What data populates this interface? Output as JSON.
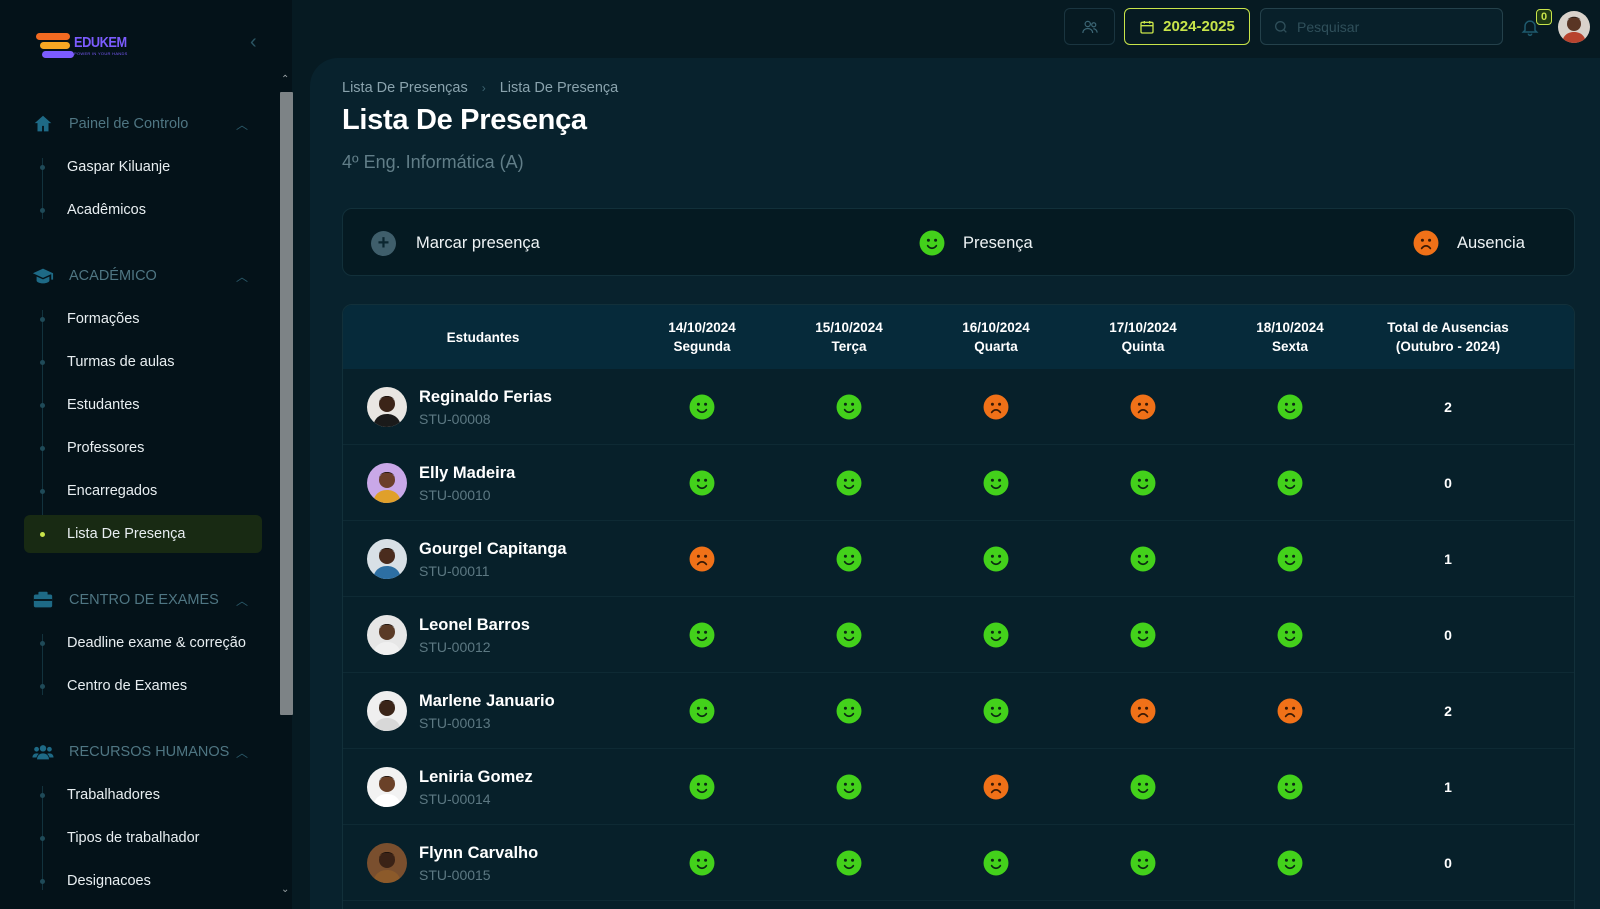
{
  "app": {
    "logo_title": "EDUKEM",
    "logo_subtitle": "POWER IN YOUR HANDS"
  },
  "colors": {
    "accent": "#c8e44a",
    "present": "#43d11b",
    "absent": "#f07118",
    "background": "#061a22"
  },
  "sidebar": {
    "sections": [
      {
        "label": "Painel de Controlo",
        "icon": "home-icon",
        "items": [
          "Gaspar Kiluanje",
          "Acadêmicos"
        ]
      },
      {
        "label": "ACADÉMICO",
        "icon": "graduation-cap-icon",
        "items": [
          "Formações",
          "Turmas de aulas",
          "Estudantes",
          "Professores",
          "Encarregados",
          "Lista De Presença"
        ]
      },
      {
        "label": "CENTRO DE EXAMES",
        "icon": "exam-box-icon",
        "items": [
          "Deadline exame & correção",
          "Centro de Exames"
        ]
      },
      {
        "label": "RECURSOS HUMANOS",
        "icon": "people-icon",
        "items": [
          "Trabalhadores",
          "Tipos de trabalhador",
          "Designacoes"
        ]
      }
    ],
    "active_item": "Lista De Presença"
  },
  "topbar": {
    "year": "2024-2025",
    "search_placeholder": "Pesquisar",
    "notifications": "0"
  },
  "page": {
    "breadcrumb": [
      "Lista De Presenças",
      "Lista De Presença"
    ],
    "title": "Lista De Presença",
    "subtitle": "4º Eng. Informática (A)"
  },
  "legend": {
    "mark": "Marcar presença",
    "present": "Presença",
    "absent": "Ausencia"
  },
  "table": {
    "student_header": "Estudantes",
    "days": [
      {
        "date": "14/10/2024",
        "weekday": "Segunda"
      },
      {
        "date": "15/10/2024",
        "weekday": "Terça"
      },
      {
        "date": "16/10/2024",
        "weekday": "Quarta"
      },
      {
        "date": "17/10/2024",
        "weekday": "Quinta"
      },
      {
        "date": "18/10/2024",
        "weekday": "Sexta"
      }
    ],
    "total_header_1": "Total de Ausencias",
    "total_header_2": "(Outubro - 2024)",
    "rows": [
      {
        "name": "Reginaldo Ferias",
        "id": "STU-00008",
        "attendance": [
          "P",
          "P",
          "A",
          "A",
          "P"
        ],
        "total": "2"
      },
      {
        "name": "Elly Madeira",
        "id": "STU-00010",
        "attendance": [
          "P",
          "P",
          "P",
          "P",
          "P"
        ],
        "total": "0"
      },
      {
        "name": "Gourgel Capitanga",
        "id": "STU-00011",
        "attendance": [
          "A",
          "P",
          "P",
          "P",
          "P"
        ],
        "total": "1"
      },
      {
        "name": "Leonel Barros",
        "id": "STU-00012",
        "attendance": [
          "P",
          "P",
          "P",
          "P",
          "P"
        ],
        "total": "0"
      },
      {
        "name": "Marlene Januario",
        "id": "STU-00013",
        "attendance": [
          "P",
          "P",
          "P",
          "A",
          "A"
        ],
        "total": "2"
      },
      {
        "name": "Leniria Gomez",
        "id": "STU-00014",
        "attendance": [
          "P",
          "P",
          "A",
          "P",
          "P"
        ],
        "total": "1"
      },
      {
        "name": "Flynn Carvalho",
        "id": "STU-00015",
        "attendance": [
          "P",
          "P",
          "P",
          "P",
          "P"
        ],
        "total": "0"
      }
    ]
  }
}
